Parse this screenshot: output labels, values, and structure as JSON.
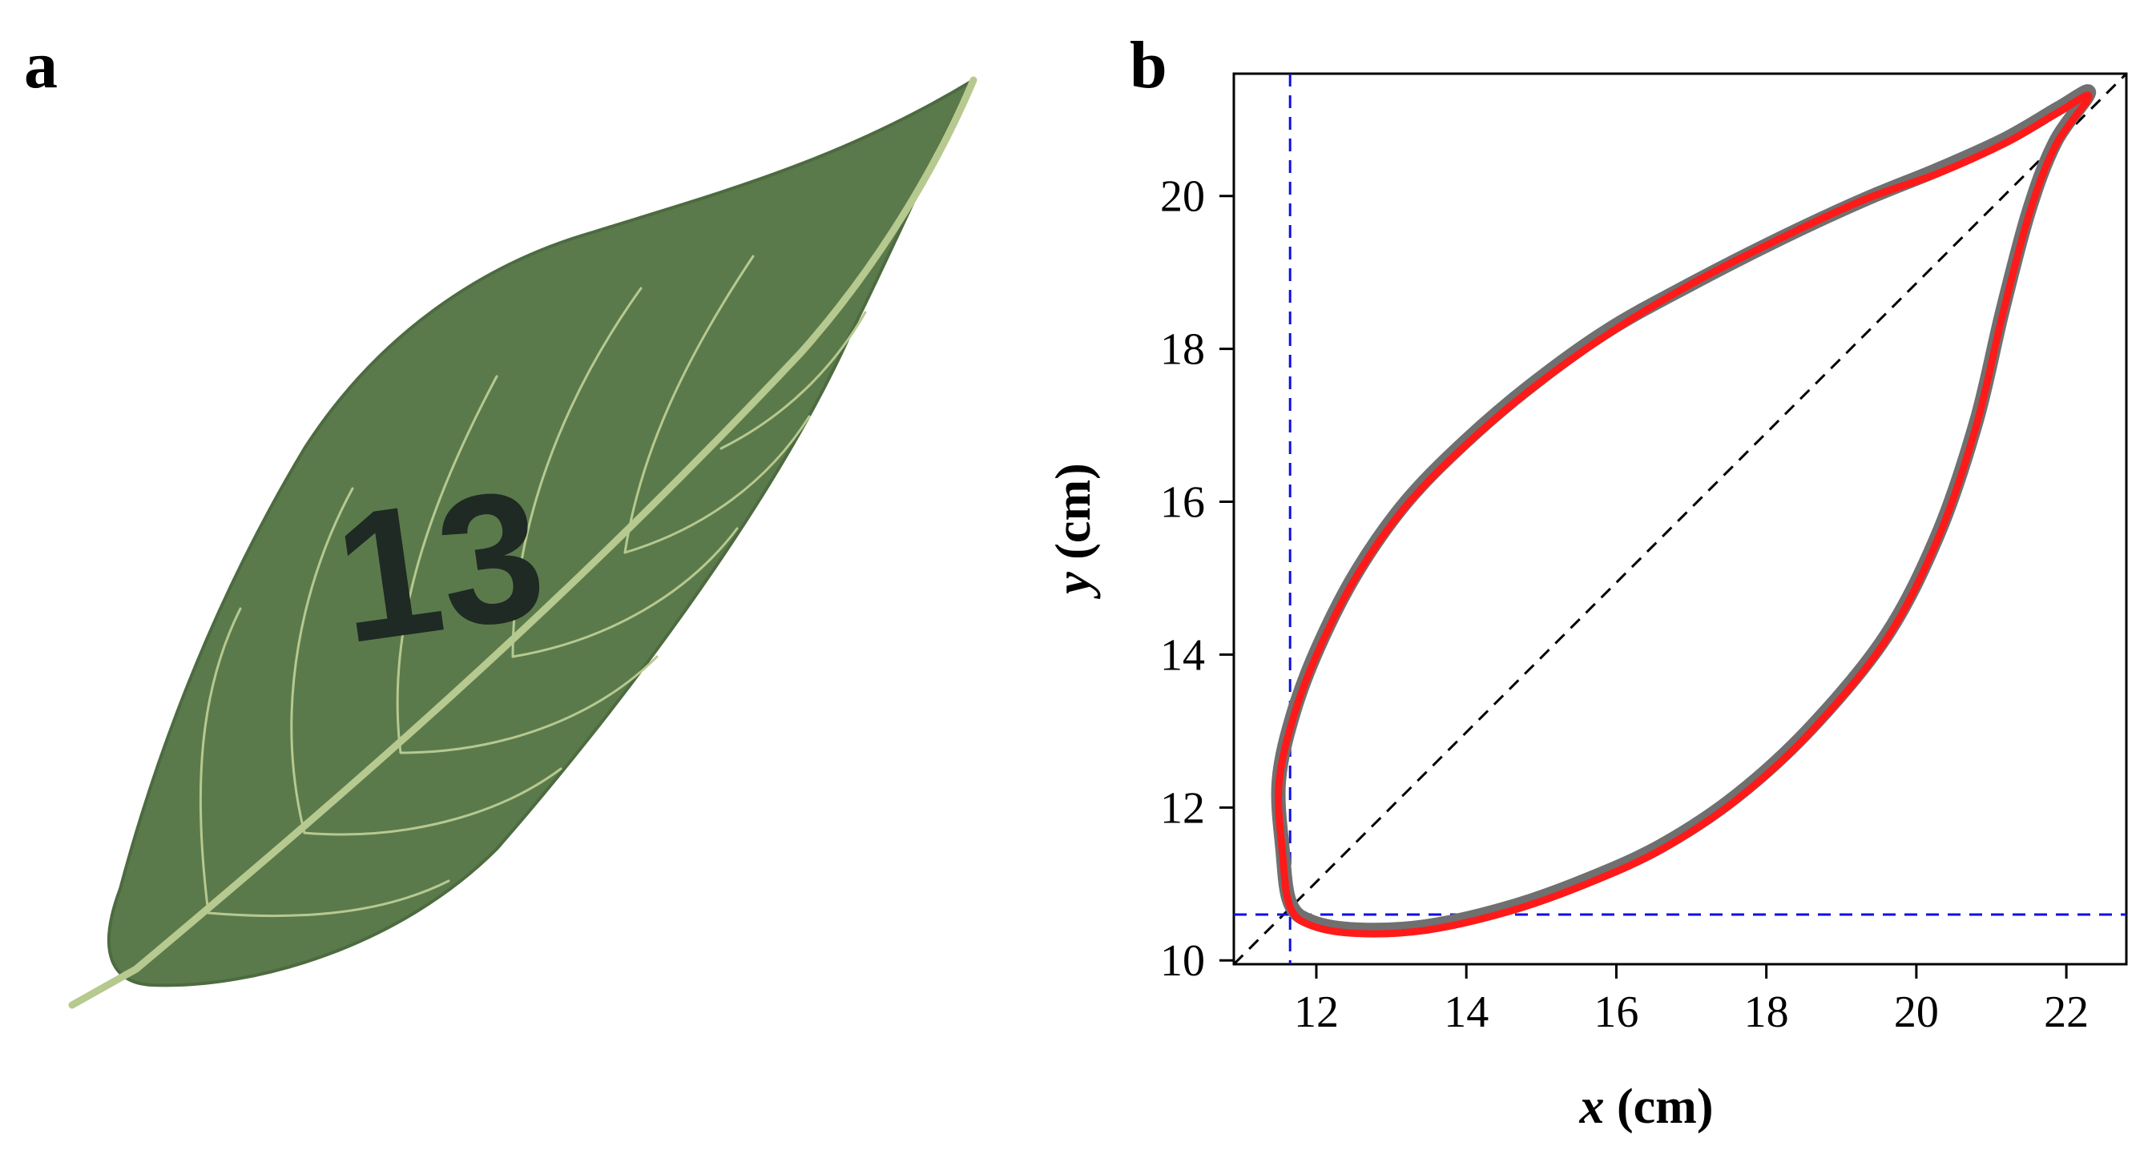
{
  "panels": {
    "a": "a",
    "b": "b"
  },
  "leaf_photo": {
    "number_marking": "13",
    "leaf_color": "#5b7a4c",
    "vein_color": "#b6c98f"
  },
  "chart_data": {
    "type": "line",
    "title": "",
    "xlabel_var": "x",
    "xlabel_unit": " (cm)",
    "ylabel_var": "y",
    "ylabel_unit": " (cm)",
    "xlim": [
      10.9,
      22.8
    ],
    "ylim": [
      9.95,
      21.6
    ],
    "xticks": [
      12,
      14,
      16,
      18,
      20,
      22
    ],
    "yticks": [
      10,
      12,
      14,
      16,
      18,
      20
    ],
    "grid": false,
    "reference_lines": {
      "vertical_x": 11.65,
      "horizontal_y": 10.6,
      "diagonal": [
        [
          10.9,
          9.95
        ],
        [
          22.8,
          21.6
        ]
      ]
    },
    "series": [
      {
        "color": "#707070",
        "style": "observed",
        "points": [
          [
            22.3,
            21.35
          ],
          [
            21.9,
            21.15
          ],
          [
            21.2,
            20.75
          ],
          [
            20.3,
            20.35
          ],
          [
            19.3,
            19.95
          ],
          [
            18.2,
            19.45
          ],
          [
            17.0,
            18.85
          ],
          [
            15.9,
            18.25
          ],
          [
            14.9,
            17.55
          ],
          [
            14.0,
            16.8
          ],
          [
            13.2,
            16.0
          ],
          [
            12.55,
            15.1
          ],
          [
            12.05,
            14.15
          ],
          [
            11.7,
            13.25
          ],
          [
            11.5,
            12.35
          ],
          [
            11.55,
            11.45
          ],
          [
            11.65,
            10.75
          ],
          [
            11.95,
            10.5
          ],
          [
            12.6,
            10.4
          ],
          [
            13.5,
            10.45
          ],
          [
            14.6,
            10.7
          ],
          [
            15.6,
            11.05
          ],
          [
            16.6,
            11.5
          ],
          [
            17.6,
            12.15
          ],
          [
            18.6,
            13.05
          ],
          [
            19.6,
            14.25
          ],
          [
            20.3,
            15.6
          ],
          [
            20.8,
            17.05
          ],
          [
            21.15,
            18.5
          ],
          [
            21.5,
            19.8
          ],
          [
            21.85,
            20.7
          ],
          [
            22.3,
            21.35
          ]
        ]
      },
      {
        "color": "#ff1a1a",
        "style": "fitted",
        "points": [
          [
            22.3,
            21.3
          ],
          [
            21.9,
            21.1
          ],
          [
            21.2,
            20.7
          ],
          [
            20.3,
            20.3
          ],
          [
            19.3,
            19.95
          ],
          [
            18.2,
            19.45
          ],
          [
            17.0,
            18.85
          ],
          [
            15.9,
            18.2
          ],
          [
            14.9,
            17.5
          ],
          [
            14.0,
            16.75
          ],
          [
            13.2,
            15.95
          ],
          [
            12.55,
            15.05
          ],
          [
            12.05,
            14.1
          ],
          [
            11.7,
            13.2
          ],
          [
            11.5,
            12.3
          ],
          [
            11.55,
            11.4
          ],
          [
            11.65,
            10.7
          ],
          [
            11.95,
            10.45
          ],
          [
            12.6,
            10.35
          ],
          [
            13.5,
            10.4
          ],
          [
            14.6,
            10.65
          ],
          [
            15.6,
            11.0
          ],
          [
            16.6,
            11.45
          ],
          [
            17.6,
            12.1
          ],
          [
            18.6,
            13.0
          ],
          [
            19.6,
            14.2
          ],
          [
            20.3,
            15.55
          ],
          [
            20.8,
            17.0
          ],
          [
            21.15,
            18.45
          ],
          [
            21.5,
            19.75
          ],
          [
            21.85,
            20.65
          ],
          [
            22.3,
            21.3
          ]
        ]
      }
    ]
  }
}
